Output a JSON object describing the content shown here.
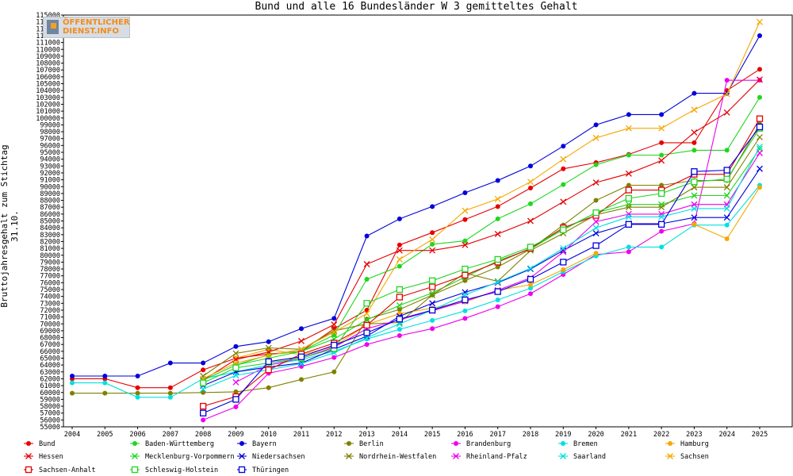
{
  "chart_data": {
    "type": "line",
    "title": "Bund und alle 16 Bundesländer W 3 gemitteltes Gehalt",
    "ylabel": "Bruttojahresgehalt zum Stichtag 31.10.",
    "xlabel": "",
    "ylim": [
      55000,
      115000
    ],
    "ytick_step": 1000,
    "grid": false,
    "legend_position": "bottom",
    "x": [
      2004,
      2005,
      2006,
      2007,
      2008,
      2009,
      2010,
      2011,
      2012,
      2013,
      2014,
      2015,
      2016,
      2017,
      2018,
      2019,
      2020,
      2021,
      2022,
      2023,
      2024,
      2025
    ],
    "series": [
      {
        "name": "Bund",
        "color": "#e60000",
        "marker": "dot",
        "values": [
          62000,
          62000,
          60700,
          60700,
          63300,
          65000,
          65600,
          66000,
          69300,
          72000,
          81500,
          83300,
          85200,
          87100,
          89800,
          92600,
          93500,
          94700,
          96400,
          96400,
          104000,
          107100
        ]
      },
      {
        "name": "Baden-Württemberg",
        "color": "#20d620",
        "marker": "dot",
        "values": [
          null,
          null,
          null,
          null,
          null,
          64000,
          65500,
          66000,
          68400,
          76500,
          78400,
          81600,
          82100,
          85300,
          87500,
          90300,
          93200,
          94600,
          94600,
          95300,
          95300,
          103000
        ]
      },
      {
        "name": "Bayern",
        "color": "#0000dd",
        "marker": "dot",
        "values": [
          62400,
          62400,
          62400,
          64300,
          64300,
          66700,
          67400,
          69300,
          70800,
          82800,
          85300,
          87100,
          89100,
          90900,
          93000,
          95900,
          99000,
          100500,
          100500,
          103600,
          103600,
          112000
        ]
      },
      {
        "name": "Berlin",
        "color": "#808000",
        "marker": "dot",
        "values": [
          59900,
          59900,
          59900,
          59900,
          60000,
          60100,
          60700,
          61900,
          63000,
          70700,
          72100,
          74200,
          76300,
          78300,
          80900,
          84400,
          88000,
          90200,
          90200,
          90900,
          90900,
          99100
        ]
      },
      {
        "name": "Brandenburg",
        "color": "#ee00ee",
        "marker": "dot",
        "values": [
          null,
          null,
          null,
          null,
          56000,
          57900,
          62800,
          63800,
          65100,
          67000,
          68300,
          69300,
          70800,
          72500,
          74400,
          77200,
          80100,
          80500,
          83500,
          84600,
          105500,
          105500
        ]
      },
      {
        "name": "Bremen",
        "color": "#00e0e0",
        "marker": "dot",
        "values": [
          61400,
          61400,
          59300,
          59300,
          62000,
          63000,
          64000,
          64800,
          66000,
          67800,
          69200,
          70500,
          71900,
          73500,
          75200,
          77600,
          79900,
          81200,
          81200,
          84400,
          84400,
          90200
        ]
      },
      {
        "name": "Hamburg",
        "color": "#f5a800",
        "marker": "dot",
        "values": [
          null,
          null,
          null,
          null,
          null,
          65000,
          66300,
          65500,
          66700,
          69900,
          71500,
          72300,
          73200,
          74900,
          75700,
          77900,
          80300,
          null,
          null,
          84500,
          82400,
          89900
        ]
      },
      {
        "name": "Hessen",
        "color": "#e60000",
        "marker": "x",
        "values": [
          null,
          null,
          null,
          null,
          61800,
          64800,
          65900,
          67500,
          69900,
          78700,
          80700,
          80700,
          81500,
          83100,
          85000,
          87800,
          90600,
          91900,
          93800,
          97900,
          100800,
          105600
        ]
      },
      {
        "name": "Mecklenburg-Vorpommern",
        "color": "#20d620",
        "marker": "x",
        "values": [
          null,
          null,
          null,
          null,
          61800,
          64000,
          65000,
          66000,
          67800,
          70600,
          72700,
          74500,
          76800,
          79200,
          80900,
          83800,
          86200,
          87400,
          87400,
          88700,
          88700,
          95500
        ]
      },
      {
        "name": "Niedersachsen",
        "color": "#0000dd",
        "marker": "x",
        "values": [
          null,
          null,
          null,
          null,
          61000,
          63000,
          63700,
          64300,
          66300,
          68200,
          71100,
          73000,
          74600,
          76000,
          78000,
          80700,
          83200,
          84600,
          84600,
          85500,
          85500,
          92600
        ]
      },
      {
        "name": "Nordrhein-Westfalen",
        "color": "#808000",
        "marker": "x",
        "values": [
          null,
          null,
          null,
          null,
          62400,
          65700,
          66500,
          66300,
          69000,
          70000,
          70200,
          74200,
          77400,
          76200,
          80700,
          83200,
          85900,
          87000,
          87000,
          89900,
          89900,
          97200
        ]
      },
      {
        "name": "Rheinland-Pfalz",
        "color": "#ee00ee",
        "marker": "x",
        "values": [
          null,
          null,
          null,
          null,
          null,
          61500,
          64000,
          65000,
          66600,
          69300,
          70600,
          71900,
          73300,
          74900,
          76700,
          80500,
          84900,
          86000,
          86000,
          87400,
          87400,
          94900
        ]
      },
      {
        "name": "Saarland",
        "color": "#00e0e0",
        "marker": "x",
        "values": [
          null,
          null,
          null,
          null,
          60500,
          62500,
          63300,
          64200,
          65800,
          68000,
          70000,
          72000,
          74200,
          76100,
          78100,
          81000,
          84000,
          85600,
          85600,
          86800,
          86800,
          95800
        ]
      },
      {
        "name": "Sachsen",
        "color": "#f5a800",
        "marker": "x",
        "values": [
          null,
          null,
          null,
          null,
          62000,
          64300,
          65400,
          66300,
          68800,
          71500,
          79400,
          82300,
          86500,
          88200,
          90700,
          94000,
          97100,
          98500,
          98500,
          101200,
          103500,
          114000
        ]
      },
      {
        "name": "Sachsen-Anhalt",
        "color": "#e60000",
        "marker": "square",
        "values": [
          null,
          null,
          null,
          null,
          58000,
          59400,
          63300,
          65600,
          67200,
          69800,
          73900,
          75400,
          77100,
          79000,
          81000,
          84000,
          85800,
          89500,
          89500,
          91800,
          91800,
          99900
        ]
      },
      {
        "name": "Schleswig-Holstein",
        "color": "#20d620",
        "marker": "square",
        "values": [
          null,
          null,
          null,
          null,
          61400,
          63600,
          64300,
          65000,
          66400,
          73000,
          75000,
          76300,
          78000,
          79400,
          81200,
          83700,
          86200,
          88300,
          89000,
          90700,
          91100,
          98500
        ]
      },
      {
        "name": "Thüringen",
        "color": "#0000dd",
        "marker": "square",
        "values": [
          null,
          null,
          null,
          null,
          57000,
          59000,
          64500,
          65200,
          66900,
          68700,
          70700,
          72000,
          73500,
          74700,
          76500,
          79000,
          81400,
          84500,
          84500,
          92200,
          92400,
          98700
        ]
      }
    ]
  },
  "logo": {
    "line1": "ÖFFENTLICHER",
    "line2": "DIENST.INFO"
  }
}
